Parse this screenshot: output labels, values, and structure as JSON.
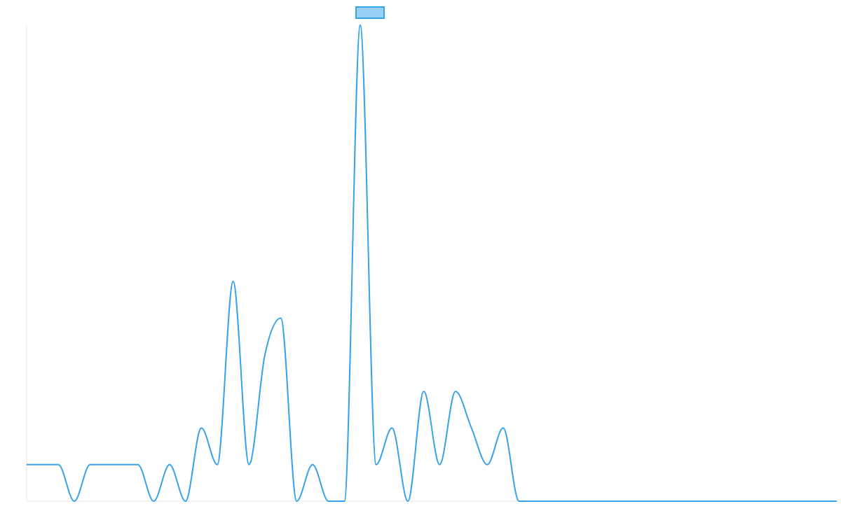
{
  "chart_data": {
    "type": "line",
    "title": "",
    "xlabel": "",
    "ylabel": "",
    "ylim": [
      0,
      13
    ],
    "grid": false,
    "legend": {
      "placement": "top-center",
      "entries": [
        ""
      ]
    },
    "series": [
      {
        "name": "",
        "color": "#36a2eb",
        "fill": "#9ad0f5",
        "x": [
          0,
          1,
          2,
          3,
          4,
          5,
          6,
          7,
          8,
          9,
          10,
          11,
          12,
          13,
          14,
          15,
          16,
          17,
          18,
          19,
          20,
          21,
          22,
          23,
          24,
          25,
          26,
          27,
          28,
          29,
          30,
          31,
          32,
          33,
          34,
          35,
          36,
          37,
          38,
          39,
          40,
          41,
          42,
          43,
          44,
          45,
          46,
          47,
          48,
          49,
          50,
          51
        ],
        "values": [
          1,
          1,
          1,
          0,
          1,
          1,
          1,
          1,
          0,
          1,
          0,
          2,
          1,
          6,
          1,
          4,
          5,
          0,
          1,
          0,
          0,
          13,
          1,
          2,
          0,
          3,
          1,
          3,
          2,
          1,
          2,
          0,
          0,
          0,
          0,
          0,
          0,
          0,
          0,
          0,
          0,
          0,
          0,
          0,
          0,
          0,
          0,
          0,
          0,
          0,
          0,
          0
        ]
      }
    ]
  }
}
